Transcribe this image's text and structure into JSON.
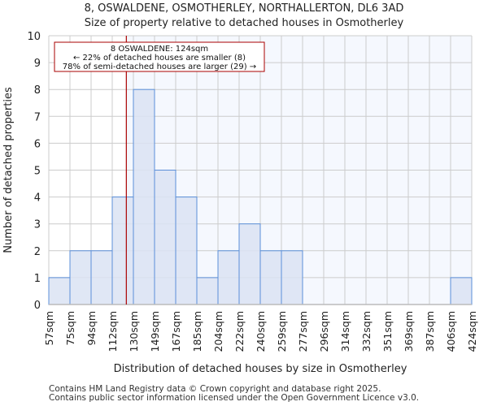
{
  "chart_data": {
    "type": "bar",
    "title": "8, OSWALDENE, OSMOTHERLEY, NORTHALLERTON, DL6 3AD",
    "subtitle": "Size of property relative to detached houses in Osmotherley",
    "xlabel": "Distribution of detached houses by size in Osmotherley",
    "ylabel": "Number of detached properties",
    "bin_edges": [
      57,
      75,
      94,
      112,
      130,
      149,
      167,
      185,
      204,
      222,
      240,
      259,
      277,
      296,
      314,
      332,
      351,
      369,
      387,
      406,
      424
    ],
    "tick_labels": [
      "57sqm",
      "75sqm",
      "94sqm",
      "112sqm",
      "130sqm",
      "149sqm",
      "167sqm",
      "185sqm",
      "204sqm",
      "222sqm",
      "240sqm",
      "259sqm",
      "277sqm",
      "296sqm",
      "314sqm",
      "332sqm",
      "351sqm",
      "369sqm",
      "387sqm",
      "406sqm",
      "424sqm"
    ],
    "values": [
      1,
      2,
      2,
      4,
      8,
      5,
      4,
      1,
      2,
      3,
      2,
      2,
      0,
      0,
      0,
      0,
      0,
      0,
      0,
      1
    ],
    "ylim": [
      0,
      10
    ],
    "yticks": [
      "0",
      "1",
      "2",
      "3",
      "4",
      "5",
      "6",
      "7",
      "8",
      "9",
      "10"
    ],
    "grid": true,
    "marker_value": 124,
    "annotation": {
      "line1": "8 OSWALDENE: 124sqm",
      "line2": "← 22% of detached houses are smaller (8)",
      "line3": "78% of semi-detached houses are larger (29) →"
    },
    "colors": {
      "bar_fill": "#dae3f3",
      "bar_stroke": "#5b8fd9",
      "marker": "#aa0000",
      "highlight_bg": "#f5f8fe",
      "grid": "#cccccc"
    }
  },
  "footer": {
    "line1": "Contains HM Land Registry data © Crown copyright and database right 2025.",
    "line2": "Contains public sector information licensed under the Open Government Licence v3.0."
  }
}
